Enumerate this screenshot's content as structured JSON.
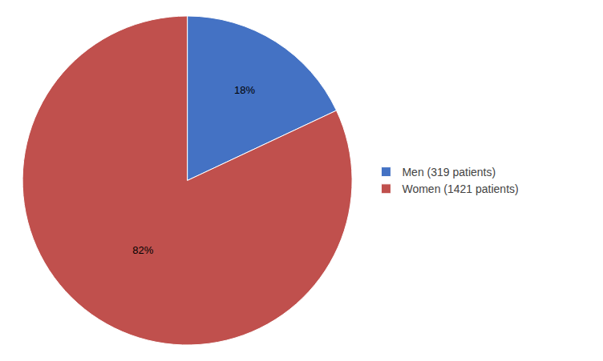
{
  "chart_data": {
    "type": "pie",
    "categories": [
      "Men (319 patients)",
      "Women (1421 patients)"
    ],
    "values": [
      18,
      82
    ],
    "value_labels": [
      "18%",
      "82%"
    ],
    "colors": [
      "#4472C4",
      "#C0504D"
    ],
    "data_labels": true,
    "legend": "right"
  }
}
